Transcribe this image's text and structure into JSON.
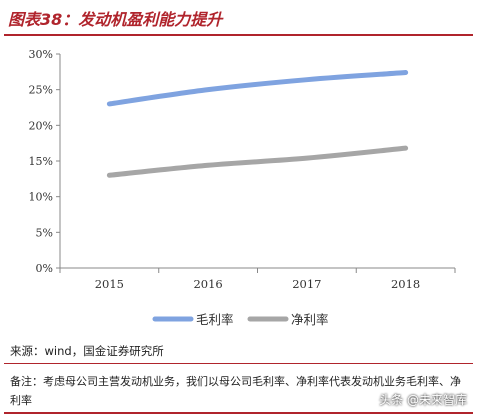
{
  "header": {
    "title": "图表38：发动机盈利能力提升"
  },
  "footer": {
    "source": "来源：wind，国金证券研究所",
    "note": "备注：考虑母公司主营发动机业务，我们以母公司毛利率、净利率代表发动机业务毛利率、净利率",
    "watermark": "头条 @未来智库"
  },
  "chart_data": {
    "type": "line",
    "title": "图表38：发动机盈利能力提升",
    "x": [
      "2015",
      "2016",
      "2017",
      "2018"
    ],
    "ylim": [
      0,
      30
    ],
    "yticks": [
      0,
      5,
      10,
      15,
      20,
      25,
      30
    ],
    "ytick_labels": [
      "0%",
      "5%",
      "10%",
      "15%",
      "20%",
      "25%",
      "30%"
    ],
    "xlabel": "",
    "ylabel": "",
    "grid": false,
    "legend_position": "bottom",
    "series": [
      {
        "name": "毛利率",
        "values": [
          23.0,
          25.0,
          26.4,
          27.4
        ],
        "color": "#7fa3e0"
      },
      {
        "name": "净利率",
        "values": [
          13.0,
          14.4,
          15.4,
          16.8
        ],
        "color": "#a6a6a6"
      }
    ]
  }
}
